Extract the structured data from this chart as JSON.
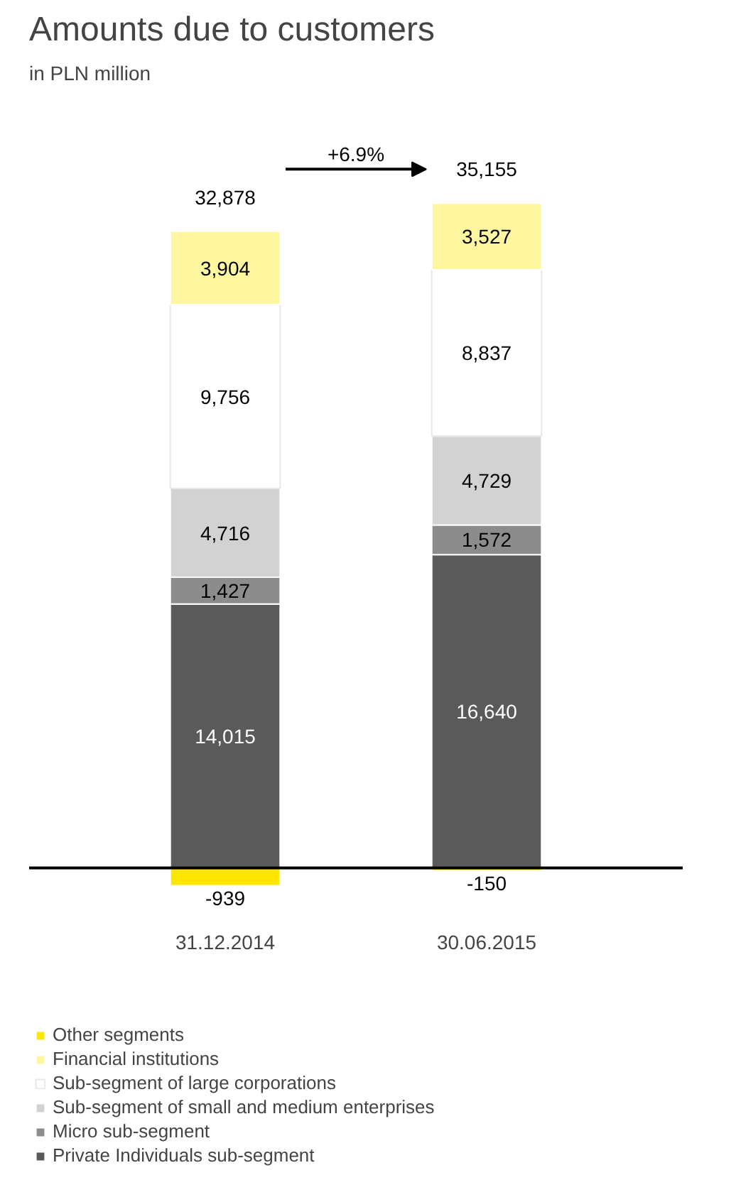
{
  "chart_data": {
    "type": "bar",
    "title": "Amounts due to customers",
    "subtitle": "in PLN million",
    "categories": [
      "31.12.2014",
      "30.06.2015"
    ],
    "stacked": true,
    "legend": "bottom",
    "series": [
      {
        "name": "Private Individuals sub-segment",
        "color": "#5a5a5a",
        "values": [
          14015,
          16640
        ],
        "value_labels": [
          "14,015",
          "16,640"
        ]
      },
      {
        "name": "Micro sub-segment",
        "color": "#8c8c8c",
        "values": [
          1427,
          1572
        ],
        "value_labels": [
          "1,427",
          "1,572"
        ]
      },
      {
        "name": "Sub-segment of small and medium enterprises",
        "color": "#d2d2d2",
        "values": [
          4716,
          4729
        ],
        "value_labels": [
          "4,716",
          "4,729"
        ]
      },
      {
        "name": "Sub-segment of large corporations",
        "color": "#ffffff",
        "values": [
          9756,
          8837
        ],
        "value_labels": [
          "9,756",
          "8,837"
        ]
      },
      {
        "name": "Financial institutions",
        "color": "#fff7a0",
        "values": [
          3904,
          3527
        ],
        "value_labels": [
          "3,904",
          "3,527"
        ]
      },
      {
        "name": "Other segments",
        "color": "#ffe600",
        "values": [
          -939,
          -150
        ],
        "value_labels": [
          "-939",
          "-150"
        ]
      }
    ],
    "totals": [
      "32,878",
      "35,155"
    ],
    "annotations": [
      "+6.9%"
    ]
  }
}
